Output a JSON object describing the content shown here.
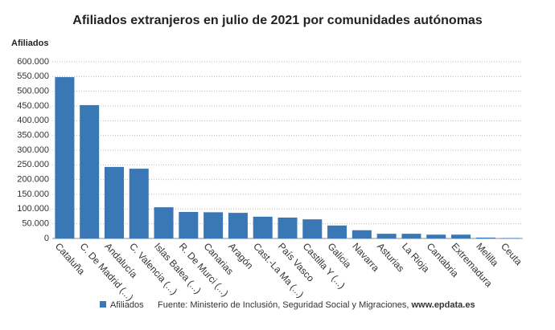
{
  "chart_data": {
    "type": "bar",
    "title": "Afiliados extranjeros en julio de 2021 por comunidades autónomas",
    "y_label": "Afiliados",
    "categories": [
      "Cataluña",
      "C. De Madrid (...)",
      "Andalucía",
      "C. Valencia (...)",
      "Islas Balea (...)",
      "R. De Murci (...)",
      "Canarias",
      "Aragón",
      "Cast.-La Ma (...)",
      "País Vasco",
      "Castilla Y (...)",
      "Galicia",
      "Navarra",
      "Asturias",
      "La Rioja",
      "Cantabria",
      "Extremadura",
      "Melilla",
      "Ceuta"
    ],
    "series": [
      {
        "name": "Afiliados",
        "color": "#3a78b5",
        "values": [
          548000,
          453000,
          243000,
          237000,
          106000,
          90000,
          89000,
          87000,
          74000,
          71000,
          65000,
          44000,
          28000,
          16000,
          16000,
          13000,
          13000,
          3000,
          1500
        ]
      }
    ],
    "ylim": [
      0,
      600000
    ],
    "yticks": [
      0,
      {
        "value": 50000,
        "label": "50.000"
      },
      {
        "value": 100000,
        "label": "100.000"
      },
      {
        "value": 150000,
        "label": "150.000"
      },
      {
        "value": 200000,
        "label": "200.000"
      },
      {
        "value": 250000,
        "label": "250.000"
      },
      {
        "value": 300000,
        "label": "300.000"
      },
      {
        "value": 350000,
        "label": "350.000"
      },
      {
        "value": 400000,
        "label": "400.000"
      },
      {
        "value": 450000,
        "label": "450.000"
      },
      {
        "value": 500000,
        "label": "500.000"
      },
      {
        "value": 550000,
        "label": "550.000"
      },
      {
        "value": 600000,
        "label": "600.000"
      }
    ],
    "grid": true,
    "source": "Fuente: Ministerio de Inclusión, Seguridad Social y Migraciones,",
    "source_site": "www.epdata.es"
  }
}
